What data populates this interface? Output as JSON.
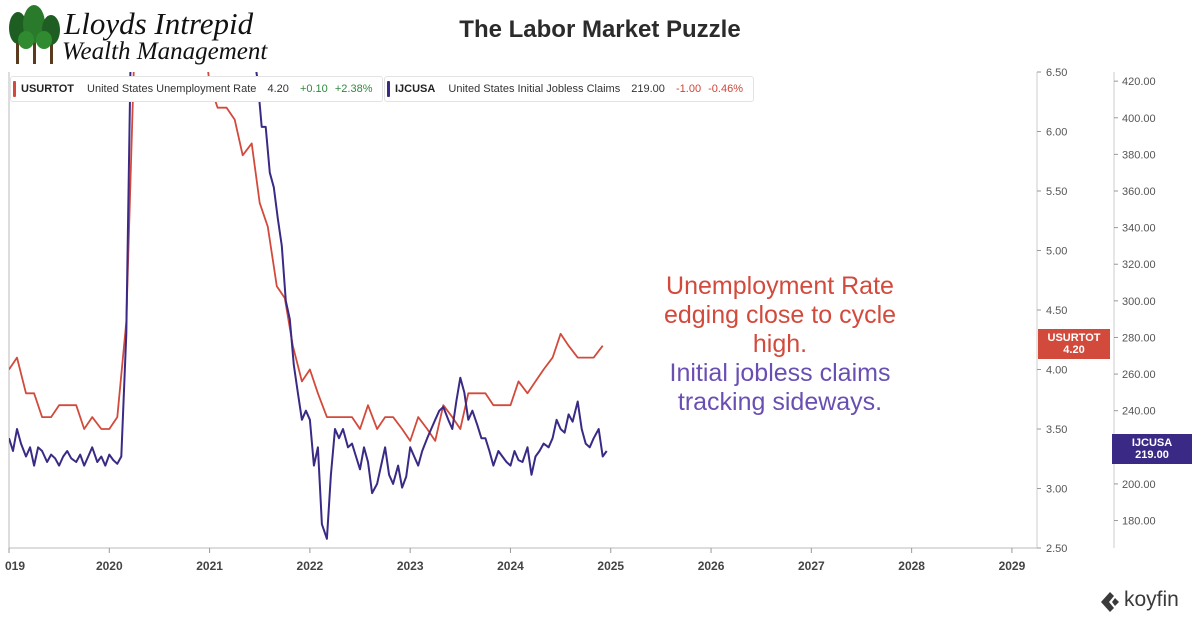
{
  "logo": {
    "line1": "Lloyds Intrepid",
    "line2": "Wealth Management"
  },
  "page_title": "The Labor Market Puzzle",
  "legend": {
    "unemployment": {
      "code": "USURTOT",
      "name": "United States Unemployment Rate",
      "value": "4.20",
      "change": "+0.10",
      "pct": "+2.38%",
      "color": "#d24a3c"
    },
    "claims": {
      "code": "IJCUSA",
      "name": "United States Initial Jobless Claims",
      "value": "219.00",
      "change": "-1.00",
      "pct": "-0.46%",
      "color": "#3a2a86"
    }
  },
  "annotations": {
    "unemployment_lines": [
      "Unemployment Rate",
      "edging close to cycle",
      "high."
    ],
    "claims_lines": [
      "Initial jobless claims",
      "tracking sideways."
    ]
  },
  "tags": {
    "unemployment": {
      "code": "USURTOT",
      "value": "4.20",
      "color": "#d24a3c"
    },
    "claims": {
      "code": "IJCUSA",
      "value": "219.00",
      "color": "#3a2a86"
    }
  },
  "brand": "koyfin",
  "chart_data": {
    "type": "line",
    "x_ticks": [
      "019",
      "2020",
      "2021",
      "2022",
      "2023",
      "2024",
      "2025",
      "2026",
      "2027",
      "2028",
      "2029"
    ],
    "xlim": [
      2019.0,
      2029.25
    ],
    "y_left": {
      "ticks": [
        "2.50",
        "3.00",
        "3.50",
        "4.00",
        "4.50",
        "5.00",
        "5.50",
        "6.00",
        "6.50"
      ],
      "ylim": [
        2.5,
        6.5
      ]
    },
    "y_right": {
      "ticks": [
        "180.00",
        "200.00",
        "220.00",
        "240.00",
        "260.00",
        "280.00",
        "300.00",
        "320.00",
        "340.00",
        "360.00",
        "380.00",
        "400.00",
        "420.00"
      ],
      "ylim": [
        165,
        425
      ]
    },
    "grid": false,
    "legend_position": "top-left",
    "series": [
      {
        "name": "United States Unemployment Rate",
        "axis": "left",
        "color": "#d24a3c",
        "x": [
          2019.0,
          2019.08,
          2019.17,
          2019.25,
          2019.33,
          2019.42,
          2019.5,
          2019.58,
          2019.67,
          2019.75,
          2019.83,
          2019.92,
          2020.0,
          2020.08,
          2020.17,
          2020.25,
          2021.0,
          2021.08,
          2021.17,
          2021.25,
          2021.33,
          2021.42,
          2021.5,
          2021.58,
          2021.67,
          2021.75,
          2021.83,
          2021.92,
          2022.0,
          2022.08,
          2022.17,
          2022.25,
          2022.33,
          2022.42,
          2022.5,
          2022.58,
          2022.67,
          2022.75,
          2022.83,
          2022.92,
          2023.0,
          2023.08,
          2023.17,
          2023.25,
          2023.33,
          2023.42,
          2023.5,
          2023.58,
          2023.67,
          2023.75,
          2023.83,
          2023.92,
          2024.0,
          2024.08,
          2024.17,
          2024.25,
          2024.33,
          2024.42,
          2024.5,
          2024.58,
          2024.67,
          2024.75,
          2024.83,
          2024.92
        ],
        "values": [
          4.0,
          4.1,
          3.8,
          3.8,
          3.6,
          3.6,
          3.7,
          3.7,
          3.7,
          3.5,
          3.6,
          3.5,
          3.5,
          3.6,
          4.4,
          6.7,
          6.4,
          6.2,
          6.2,
          6.1,
          5.8,
          5.9,
          5.4,
          5.2,
          4.7,
          4.6,
          4.2,
          3.9,
          4.0,
          3.8,
          3.6,
          3.6,
          3.6,
          3.6,
          3.5,
          3.7,
          3.5,
          3.6,
          3.6,
          3.5,
          3.4,
          3.6,
          3.5,
          3.4,
          3.7,
          3.6,
          3.5,
          3.8,
          3.8,
          3.8,
          3.7,
          3.7,
          3.7,
          3.9,
          3.8,
          3.9,
          4.0,
          4.1,
          4.3,
          4.2,
          4.1,
          4.1,
          4.1,
          4.2
        ]
      },
      {
        "name": "United States Initial Jobless Claims",
        "axis": "right",
        "color": "#3a2a86",
        "x": [
          2019.0,
          2019.04,
          2019.08,
          2019.12,
          2019.17,
          2019.21,
          2019.25,
          2019.29,
          2019.33,
          2019.38,
          2019.42,
          2019.46,
          2019.5,
          2019.54,
          2019.58,
          2019.62,
          2019.67,
          2019.71,
          2019.75,
          2019.79,
          2019.83,
          2019.88,
          2019.92,
          2019.96,
          2020.0,
          2020.04,
          2020.08,
          2020.12,
          2020.17,
          2020.21,
          2021.48,
          2021.52,
          2021.56,
          2021.6,
          2021.64,
          2021.68,
          2021.72,
          2021.76,
          2021.8,
          2021.84,
          2021.88,
          2021.92,
          2021.96,
          2022.0,
          2022.04,
          2022.08,
          2022.12,
          2022.17,
          2022.21,
          2022.25,
          2022.29,
          2022.33,
          2022.38,
          2022.42,
          2022.46,
          2022.5,
          2022.54,
          2022.58,
          2022.62,
          2022.67,
          2022.71,
          2022.75,
          2022.79,
          2022.83,
          2022.88,
          2022.92,
          2022.96,
          2023.0,
          2023.04,
          2023.08,
          2023.12,
          2023.17,
          2023.21,
          2023.25,
          2023.29,
          2023.33,
          2023.38,
          2023.42,
          2023.46,
          2023.5,
          2023.54,
          2023.58,
          2023.62,
          2023.67,
          2023.71,
          2023.75,
          2023.79,
          2023.83,
          2023.88,
          2023.92,
          2023.96,
          2024.0,
          2024.04,
          2024.08,
          2024.12,
          2024.17,
          2024.21,
          2024.25,
          2024.29,
          2024.33,
          2024.38,
          2024.42,
          2024.46,
          2024.5,
          2024.54,
          2024.58,
          2024.62,
          2024.67,
          2024.71,
          2024.75,
          2024.79,
          2024.83,
          2024.88,
          2024.92,
          2024.96
        ],
        "values": [
          225,
          218,
          230,
          222,
          215,
          220,
          210,
          220,
          218,
          212,
          216,
          214,
          210,
          215,
          218,
          214,
          212,
          216,
          210,
          215,
          220,
          212,
          215,
          210,
          216,
          213,
          211,
          215,
          282,
          425,
          420,
          395,
          395,
          370,
          362,
          345,
          330,
          300,
          290,
          265,
          250,
          235,
          240,
          235,
          210,
          220,
          178,
          170,
          205,
          230,
          225,
          230,
          220,
          222,
          215,
          208,
          220,
          212,
          195,
          200,
          210,
          220,
          205,
          200,
          210,
          198,
          204,
          220,
          215,
          210,
          218,
          225,
          230,
          235,
          240,
          242,
          235,
          230,
          245,
          258,
          250,
          235,
          240,
          232,
          225,
          225,
          218,
          210,
          218,
          215,
          212,
          210,
          218,
          213,
          212,
          220,
          205,
          215,
          218,
          222,
          220,
          225,
          235,
          230,
          228,
          238,
          234,
          245,
          230,
          222,
          220,
          225,
          230,
          215,
          218
        ],
        "note": "values read from the chart; above 425 off-chart in picture (clipped)"
      }
    ]
  }
}
